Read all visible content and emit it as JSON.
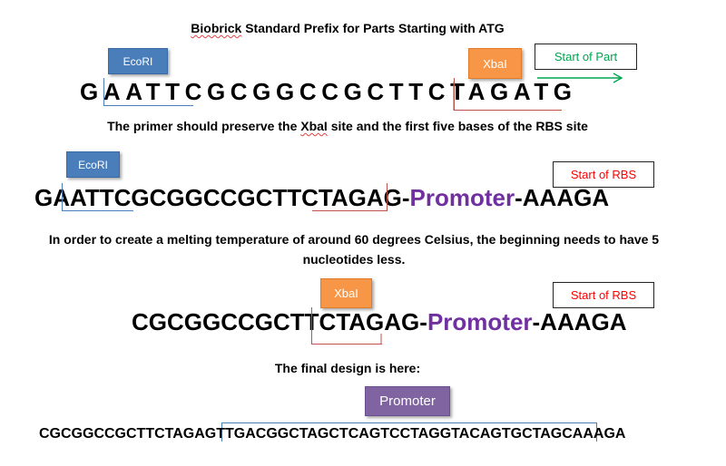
{
  "title_part1": "Biobrick",
  "title_part2": " Standard Prefix for Parts Starting with ATG",
  "ecori_label": "EcoRI",
  "xbai_label": "XbaI",
  "start_part_label": "Start of Part",
  "start_rbs_label": "Start of RBS",
  "promoter_box_label": "Promoter",
  "seq1": "GAATTCGCGGCCGCTTCTAGATG",
  "note1_a": "The primer should preserve the ",
  "note1_b": "XbaI",
  "note1_c": " site and the first five bases of the RBS site",
  "seq2": {
    "prefix": "GAATTCGCGGCCGCTTCTAGAG-",
    "promoter": "Promoter",
    "suffix": "-AAAGA"
  },
  "note2": "In order to create a melting temperature of around 60 degrees Celsius, the beginning needs to have 5 nucleotides less.",
  "seq3": {
    "prefix": "CGCGGCCGCTTCTAGAG-",
    "promoter": "Promoter",
    "suffix": "-AAAGA"
  },
  "note3": "The final design is here:",
  "seq4": "CGCGGCCGCTTCTAGAGTTGACGGCTAGCTCAGTCCTAGGTACAGTGCTAGCAAAGA",
  "colors": {
    "ecori_box": "#4a7ebb",
    "xbai_box": "#f79646",
    "promoter_box": "#8064a2",
    "promoter_text": "#7030a0",
    "rbs_label_text": "#ff0000",
    "start_part_text": "#00a651"
  }
}
